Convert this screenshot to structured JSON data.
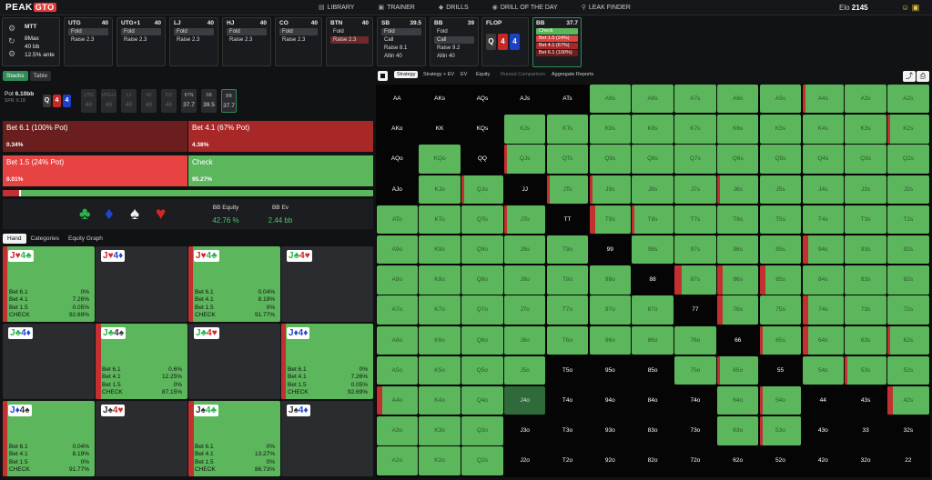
{
  "brand": {
    "name": "PEAK",
    "suffix": "GTO"
  },
  "nav": [
    {
      "icon": "library-icon",
      "label": "LIBRARY"
    },
    {
      "icon": "trainer-icon",
      "label": "TRAINER"
    },
    {
      "icon": "drills-icon",
      "label": "DRILLS"
    },
    {
      "icon": "drill-day-icon",
      "label": "DRILL OF THE DAY"
    },
    {
      "icon": "leak-finder-icon",
      "label": "LEAK FINDER"
    }
  ],
  "elo": {
    "label": "Elo",
    "value": "2145"
  },
  "game": {
    "type": "MTT",
    "table": "8Max",
    "stack": "40 bb",
    "ante": "12.5% ante"
  },
  "seats": [
    {
      "pos": "UTG",
      "stack": "40",
      "actions": [
        "Fold",
        "Raise 2.3"
      ],
      "sel": 0
    },
    {
      "pos": "UTG+1",
      "stack": "40",
      "actions": [
        "Fold",
        "Raise 2.3"
      ],
      "sel": 0
    },
    {
      "pos": "LJ",
      "stack": "40",
      "actions": [
        "Fold",
        "Raise 2.3"
      ],
      "sel": 0
    },
    {
      "pos": "HJ",
      "stack": "40",
      "actions": [
        "Fold",
        "Raise 2.3"
      ],
      "sel": 0
    },
    {
      "pos": "CO",
      "stack": "40",
      "actions": [
        "Fold",
        "Raise 2.3"
      ],
      "sel": 0
    },
    {
      "pos": "BTN",
      "stack": "40",
      "actions": [
        "Fold",
        "Raise 2.3"
      ],
      "sel": 1
    },
    {
      "pos": "SB",
      "stack": "39.5",
      "actions": [
        "Fold",
        "Call",
        "Raise 8.1",
        "Allin 40"
      ],
      "sel": 0
    },
    {
      "pos": "BB",
      "stack": "39",
      "actions": [
        "Fold",
        "Call",
        "Raise 9.2",
        "Allin 40"
      ],
      "sel": 1
    }
  ],
  "flop": {
    "label": "FLOP",
    "cards": [
      {
        "r": "Q",
        "c": "#3a3a3a"
      },
      {
        "r": "4",
        "c": "#c62828"
      },
      {
        "r": "4",
        "c": "#1e40c8"
      }
    ]
  },
  "bb_panel": {
    "pos": "BB",
    "stack": "37.7",
    "actions": [
      {
        "l": "Check",
        "c": "#5cb65c"
      },
      {
        "l": "Bet 1.5 (24%)",
        "c": "#e04040"
      },
      {
        "l": "Bet 4.1 (67%)",
        "c": "#a82828"
      },
      {
        "l": "Bet 6.1 (100%)",
        "c": "#6b1e1e"
      }
    ]
  },
  "left_tabs": [
    "Stacks",
    "Table"
  ],
  "pot": {
    "label": "Pot",
    "value": "6.10bb",
    "spr": "SPR: 6.18"
  },
  "positions": [
    {
      "l": "UTG",
      "v": "40"
    },
    {
      "l": "UTG+1",
      "v": "40"
    },
    {
      "l": "LJ",
      "v": "40"
    },
    {
      "l": "HJ",
      "v": "40"
    },
    {
      "l": "CO",
      "v": "40"
    },
    {
      "l": "BTN",
      "v": "37.7"
    },
    {
      "l": "SB",
      "v": "39.5"
    },
    {
      "l": "BB",
      "v": "37.7"
    }
  ],
  "actions": [
    {
      "label": "Bet 6.1 (100% Pot)",
      "pct": "0.34%",
      "color": "#6b1e1e"
    },
    {
      "label": "Bet 4.1 (67% Pot)",
      "pct": "4.38%",
      "color": "#a82828"
    },
    {
      "label": "Bet 1.5 (24% Pot)",
      "pct": "0.01%",
      "color": "#e84343"
    },
    {
      "label": "Check",
      "pct": "95.27%",
      "color": "#5cb65c"
    }
  ],
  "equity": {
    "suits": [
      {
        "s": "♣",
        "c": "#2bb24c"
      },
      {
        "s": "♦",
        "c": "#2046d0"
      },
      {
        "s": "♠",
        "c": "#f0f0f0"
      },
      {
        "s": "♥",
        "c": "#d02828"
      }
    ],
    "eq_label": "BB Equity",
    "eq_value": "42.76 %",
    "ev_label": "BB Ev",
    "ev_value": "2.44 bb"
  },
  "hand_tabs": [
    "Hand",
    "Categories",
    "Equity Graph"
  ],
  "combos": [
    {
      "cards": [
        {
          "r": "J",
          "s": "♥",
          "c": "#d02828"
        },
        {
          "r": "4",
          "s": "♣",
          "c": "#2bb24c"
        }
      ],
      "g": true,
      "rb": 5,
      "vals": [
        "0%",
        "7.26%",
        "0.05%",
        "92.69%"
      ]
    },
    {
      "cards": [
        {
          "r": "J",
          "s": "♥",
          "c": "#d02828"
        },
        {
          "r": "4",
          "s": "♦",
          "c": "#2046d0"
        }
      ],
      "g": false,
      "rb": 0,
      "vals": null
    },
    {
      "cards": [
        {
          "r": "J",
          "s": "♥",
          "c": "#d02828"
        },
        {
          "r": "4",
          "s": "♣",
          "c": "#2bb24c"
        }
      ],
      "g": true,
      "rb": 5,
      "vals": [
        "0.04%",
        "8.19%",
        "0%",
        "91.77%"
      ]
    },
    {
      "cards": [
        {
          "r": "J",
          "s": "♣",
          "c": "#2bb24c"
        },
        {
          "r": "4",
          "s": "♥",
          "c": "#d02828"
        }
      ],
      "g": false,
      "rb": 0,
      "vals": null
    },
    {
      "cards": [
        {
          "r": "J",
          "s": "♣",
          "c": "#2bb24c"
        },
        {
          "r": "4",
          "s": "♦",
          "c": "#2046d0"
        }
      ],
      "g": false,
      "rb": 0,
      "vals": null
    },
    {
      "cards": [
        {
          "r": "J",
          "s": "♣",
          "c": "#2bb24c"
        },
        {
          "r": "4",
          "s": "♠",
          "c": "#333"
        }
      ],
      "g": true,
      "rb": 6,
      "vals": [
        "0.6%",
        "12.25%",
        "0%",
        "87.15%"
      ]
    },
    {
      "cards": [
        {
          "r": "J",
          "s": "♣",
          "c": "#2bb24c"
        },
        {
          "r": "4",
          "s": "♥",
          "c": "#d02828"
        }
      ],
      "g": false,
      "rb": 0,
      "vals": null
    },
    {
      "cards": [
        {
          "r": "J",
          "s": "♦",
          "c": "#2046d0"
        },
        {
          "r": "4",
          "s": "♦",
          "c": "#2046d0"
        }
      ],
      "g": true,
      "rb": 5,
      "vals": [
        "0%",
        "7.26%",
        "0.05%",
        "92.69%"
      ]
    },
    {
      "cards": [
        {
          "r": "J",
          "s": "♦",
          "c": "#2046d0"
        },
        {
          "r": "4",
          "s": "♠",
          "c": "#333"
        }
      ],
      "g": true,
      "rb": 5,
      "vals": [
        "0.04%",
        "8.19%",
        "0%",
        "91.77%"
      ]
    },
    {
      "cards": [
        {
          "r": "J",
          "s": "♠",
          "c": "#333"
        },
        {
          "r": "4",
          "s": "♥",
          "c": "#d02828"
        }
      ],
      "g": false,
      "rb": 0,
      "vals": null
    },
    {
      "cards": [
        {
          "r": "J",
          "s": "♠",
          "c": "#333"
        },
        {
          "r": "4",
          "s": "♣",
          "c": "#2bb24c"
        }
      ],
      "g": true,
      "rb": 6,
      "vals": [
        "0%",
        "13.27%",
        "0%",
        "86.73%"
      ]
    },
    {
      "cards": [
        {
          "r": "J",
          "s": "♠",
          "c": "#333"
        },
        {
          "r": "4",
          "s": "♦",
          "c": "#2046d0"
        }
      ],
      "g": false,
      "rb": 0,
      "vals": null
    }
  ],
  "combo_row_labels": [
    "Bet 6.1",
    "Bet 4.1",
    "Bet 1.5",
    "CHECK"
  ],
  "strategy_tabs": [
    {
      "l": "Strategy",
      "act": true
    },
    {
      "l": "Strategy + EV"
    },
    {
      "l": "EV"
    },
    {
      "l": "Equity"
    },
    {
      "l": "Runout Comparison",
      "dim": true
    },
    {
      "l": "Aggregate Reports"
    }
  ],
  "matrix": [
    [
      "AA:k",
      "AKs:k",
      "AQs:k",
      "AJs:k",
      "ATs:k",
      "A9s:g",
      "A8s:g",
      "A7s:g",
      "A6s:g",
      "A5s:g",
      "A4s:g3",
      "A3s:g",
      "A2s:g"
    ],
    [
      "AKo:k",
      "KK:k",
      "KQs:k",
      "KJs:g",
      "KTs:g",
      "K9s:g",
      "K8s:g",
      "K7s:g",
      "K6s:g",
      "K5s:g",
      "K4s:g",
      "K3s:g",
      "K2s:g3"
    ],
    [
      "AQo:k",
      "KQo:g",
      "QQ:k",
      "QJs:g3",
      "QTs:g",
      "Q9s:g",
      "Q8s:g",
      "Q7s:g",
      "Q6s:g",
      "Q5s:g",
      "Q4s:g",
      "Q3s:g",
      "Q2s:g"
    ],
    [
      "AJo:k",
      "KJo:g",
      "QJo:g3",
      "JJ:k",
      "JTs:g3",
      "J9s:g3",
      "J8s:g",
      "J7s:g",
      "J6s:g3",
      "J5s:g",
      "J4s:g",
      "J3s:g",
      "J2s:g"
    ],
    [
      "ATo:g",
      "KTo:g",
      "QTo:g",
      "JTo:g3",
      "TT:k",
      "T9s:g6",
      "T8s:g3",
      "T7s:g",
      "T6s:g",
      "T5s:g",
      "T4s:g",
      "T3s:g",
      "T2s:g"
    ],
    [
      "A9o:g",
      "K9o:g",
      "Q9o:g",
      "J9o:g",
      "T9o:g",
      "99:k",
      "98s:g",
      "97s:g",
      "96s:g",
      "95s:g",
      "94s:g6",
      "93s:g",
      "92s:g"
    ],
    [
      "A8o:g",
      "K8o:g",
      "Q8o:g",
      "J8o:g",
      "T8o:g",
      "98o:g",
      "88:k",
      "87s:g8",
      "86s:g6",
      "85s:g6",
      "84s:g",
      "83s:g",
      "82s:g"
    ],
    [
      "A7o:g",
      "K7o:g",
      "Q7o:g",
      "J7o:g",
      "T7o:g",
      "97o:g",
      "87o:g",
      "77:k",
      "76s:g6",
      "75s:g",
      "74s:g6",
      "73s:g",
      "72s:g"
    ],
    [
      "A6o:g",
      "K6o:g",
      "Q6o:g",
      "J6o:g",
      "T6o:g",
      "96o:g",
      "86o:g",
      "76o:g",
      "66:k",
      "65s:g3",
      "64s:g6",
      "63s:g",
      "62s:g3"
    ],
    [
      "A5o:g",
      "K5o:g",
      "Q5o:g",
      "J5o:g",
      "T5o:k",
      "95o:k",
      "85o:k",
      "75o:g",
      "65o:g3",
      "55:k",
      "54s:g",
      "53s:g3",
      "52s:g"
    ],
    [
      "A4o:g6",
      "K4o:g",
      "Q4o:g",
      "J4o:dk",
      "T4o:k",
      "94o:k",
      "84o:k",
      "74o:k",
      "64o:g",
      "54o:g3",
      "44:k",
      "43s:k",
      "42s:g6"
    ],
    [
      "A3o:g",
      "K3o:g",
      "Q3o:g",
      "J3o:k",
      "T3o:k",
      "93o:k",
      "83o:k",
      "73o:k",
      "63o:g",
      "53o:g3",
      "43o:k",
      "33:k",
      "32s:k"
    ],
    [
      "A2o:g",
      "K2o:g",
      "Q2o:g",
      "J2o:k",
      "T2o:k",
      "92o:k",
      "82o:k",
      "72o:k",
      "62o:k",
      "52o:k",
      "42o:k",
      "32o:k",
      "22:k"
    ]
  ]
}
